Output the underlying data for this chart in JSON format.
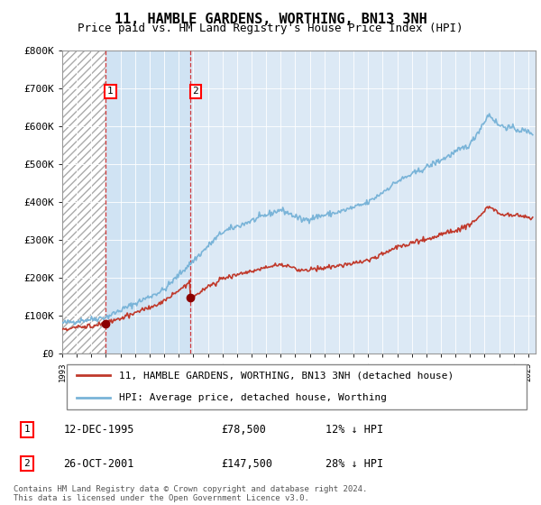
{
  "title": "11, HAMBLE GARDENS, WORTHING, BN13 3NH",
  "subtitle": "Price paid vs. HM Land Registry's House Price Index (HPI)",
  "title_fontsize": 11,
  "subtitle_fontsize": 9,
  "ylim": [
    0,
    800000
  ],
  "yticks": [
    0,
    100000,
    200000,
    300000,
    400000,
    500000,
    600000,
    700000,
    800000
  ],
  "ytick_labels": [
    "£0",
    "£100K",
    "£200K",
    "£300K",
    "£400K",
    "£500K",
    "£600K",
    "£700K",
    "£800K"
  ],
  "xlim_start": 1993.0,
  "xlim_end": 2025.5,
  "background_color": "#ffffff",
  "plot_bg_color": "#dce9f5",
  "hatch_region1_end": 1995.95,
  "hatch_region2_end": 2001.8,
  "grid_color": "#ffffff",
  "transaction1": {
    "date": "12-DEC-1995",
    "price": 78500,
    "year": 1995.95,
    "label": "1"
  },
  "transaction2": {
    "date": "26-OCT-2001",
    "price": 147500,
    "year": 2001.8,
    "label": "2"
  },
  "hpi_line_color": "#7ab4d8",
  "price_line_color": "#c0392b",
  "marker_color": "#8b0000",
  "legend_label_property": "11, HAMBLE GARDENS, WORTHING, BN13 3NH (detached house)",
  "legend_label_hpi": "HPI: Average price, detached house, Worthing",
  "footer_text": "Contains HM Land Registry data © Crown copyright and database right 2024.\nThis data is licensed under the Open Government Licence v3.0.",
  "table_rows": [
    {
      "num": "1",
      "date": "12-DEC-1995",
      "price": "£78,500",
      "note": "12% ↓ HPI"
    },
    {
      "num": "2",
      "date": "26-OCT-2001",
      "price": "£147,500",
      "note": "28% ↓ HPI"
    }
  ]
}
